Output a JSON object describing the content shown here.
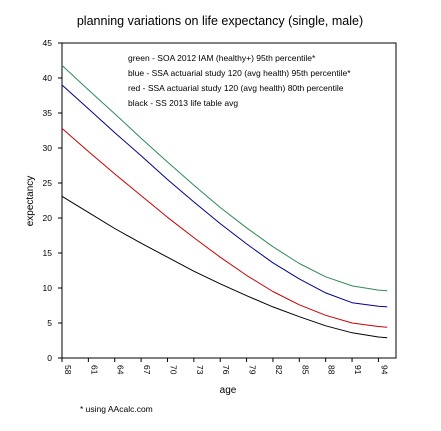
{
  "chart_data": {
    "type": "line",
    "title": "planning variations on life expectancy (single, male)",
    "xlabel": "age",
    "ylabel": "expectancy",
    "xlim": [
      58,
      96
    ],
    "ylim": [
      0,
      45
    ],
    "x_ticks": [
      "58",
      "61",
      "64",
      "67",
      "70",
      "73",
      "76",
      "79",
      "82",
      "85",
      "88",
      "91",
      "94"
    ],
    "y_ticks": [
      "0",
      "5",
      "10",
      "15",
      "20",
      "25",
      "30",
      "35",
      "40",
      "45"
    ],
    "grid": false,
    "legend": {
      "placement": "top-right",
      "entries": [
        "green - SOA 2012 IAM (healthy+) 95th percentile*",
        "blue - SSA actuarial study 120 (avg health) 95th percentile*",
        "red - SSA actuarial study 120 (avg health) 80th percentile",
        "black - SS 2013 life table avg"
      ]
    },
    "footnote": "* using AAcalc.com",
    "x": [
      58,
      61,
      64,
      67,
      70,
      73,
      76,
      79,
      82,
      85,
      88,
      91,
      94,
      95
    ],
    "series": [
      {
        "color": "#2e8b57",
        "values": [
          41.8,
          38.3,
          34.9,
          31.4,
          28.0,
          24.7,
          21.5,
          18.6,
          15.9,
          13.5,
          11.6,
          10.3,
          9.7,
          9.6
        ]
      },
      {
        "color": "#00008b",
        "values": [
          39.0,
          35.6,
          32.2,
          28.9,
          25.5,
          22.3,
          19.2,
          16.3,
          13.6,
          11.3,
          9.3,
          7.9,
          7.4,
          7.3
        ]
      },
      {
        "color": "#cc0000",
        "values": [
          32.8,
          29.5,
          26.3,
          23.2,
          20.1,
          17.2,
          14.4,
          11.8,
          9.5,
          7.6,
          6.1,
          5.0,
          4.5,
          4.4
        ]
      },
      {
        "color": "#000000",
        "values": [
          23.1,
          20.8,
          18.5,
          16.4,
          14.4,
          12.4,
          10.6,
          8.9,
          7.3,
          5.9,
          4.6,
          3.6,
          3.0,
          2.9
        ]
      }
    ]
  }
}
